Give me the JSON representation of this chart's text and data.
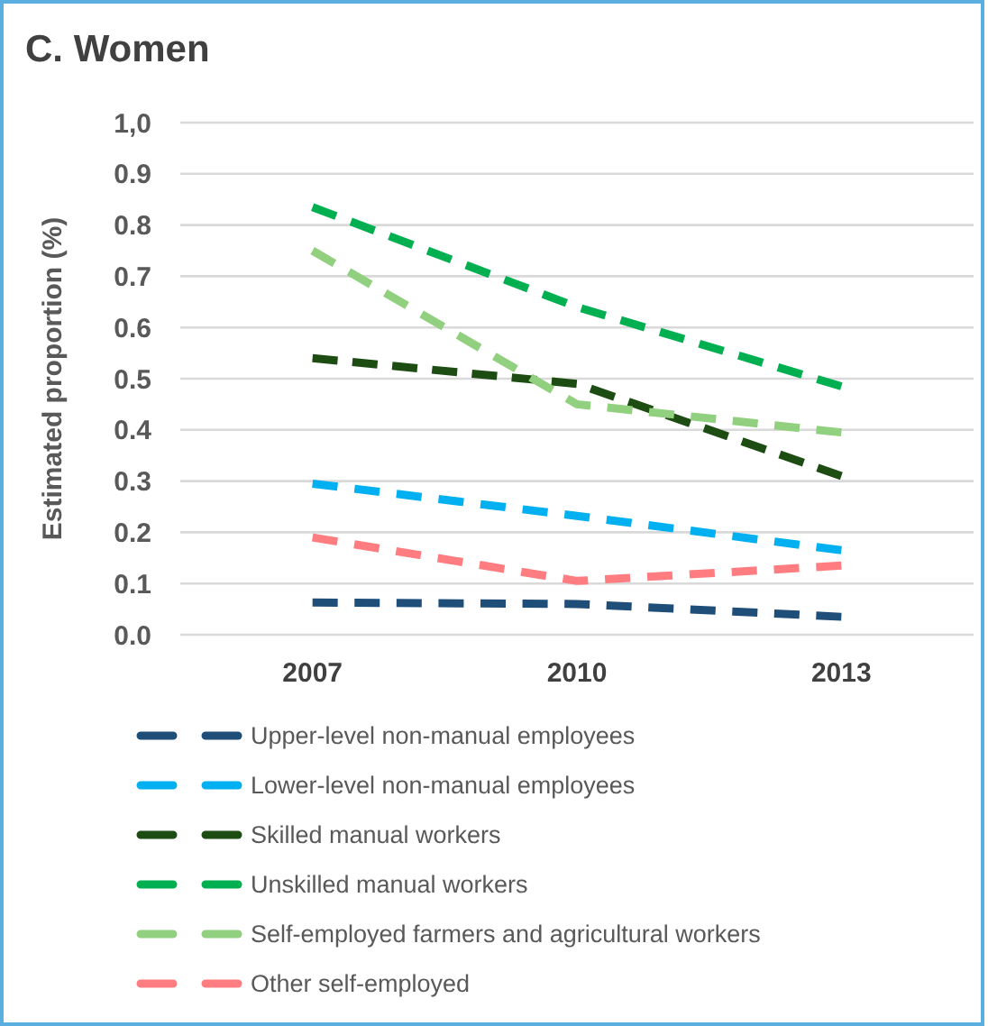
{
  "chart_data": {
    "type": "line",
    "title": "C. Women",
    "ylabel": "Estimated proportion (%)",
    "categories": [
      "2007",
      "2010",
      "2013"
    ],
    "ylim": [
      0,
      1
    ],
    "yticks": [
      {
        "value": 0,
        "label": "0.0"
      },
      {
        "value": 0.1,
        "label": "0.1"
      },
      {
        "value": 0.2,
        "label": "0.2"
      },
      {
        "value": 0.3,
        "label": "0.3"
      },
      {
        "value": 0.4,
        "label": "0.4"
      },
      {
        "value": 0.5,
        "label": "0.5"
      },
      {
        "value": 0.6,
        "label": "0.6"
      },
      {
        "value": 0.7,
        "label": "0.7"
      },
      {
        "value": 0.8,
        "label": "0.8"
      },
      {
        "value": 0.9,
        "label": "0.9"
      },
      {
        "value": 1,
        "label": "1,0"
      }
    ],
    "grid": "y",
    "legend": "bottom",
    "line_style": "dashed",
    "marker": "none",
    "series": [
      {
        "name": "Upper-level non-manual employees",
        "color": "#1f4e79",
        "values": [
          0.063,
          0.06,
          0.035
        ]
      },
      {
        "name": "Lower-level non-manual employees",
        "color": "#00b0f0",
        "values": [
          0.295,
          0.232,
          0.165
        ]
      },
      {
        "name": "Skilled manual workers",
        "color": "#1e4d14",
        "values": [
          0.54,
          0.49,
          0.31
        ]
      },
      {
        "name": "Unskilled manual workers",
        "color": "#00b050",
        "values": [
          0.835,
          0.64,
          0.485
        ]
      },
      {
        "name": "Self-employed farmers and agricultural workers",
        "color": "#90d07e",
        "values": [
          0.75,
          0.45,
          0.395
        ]
      },
      {
        "name": "Other self-employed",
        "color": "#ff7c80",
        "values": [
          0.19,
          0.105,
          0.135
        ]
      }
    ]
  }
}
